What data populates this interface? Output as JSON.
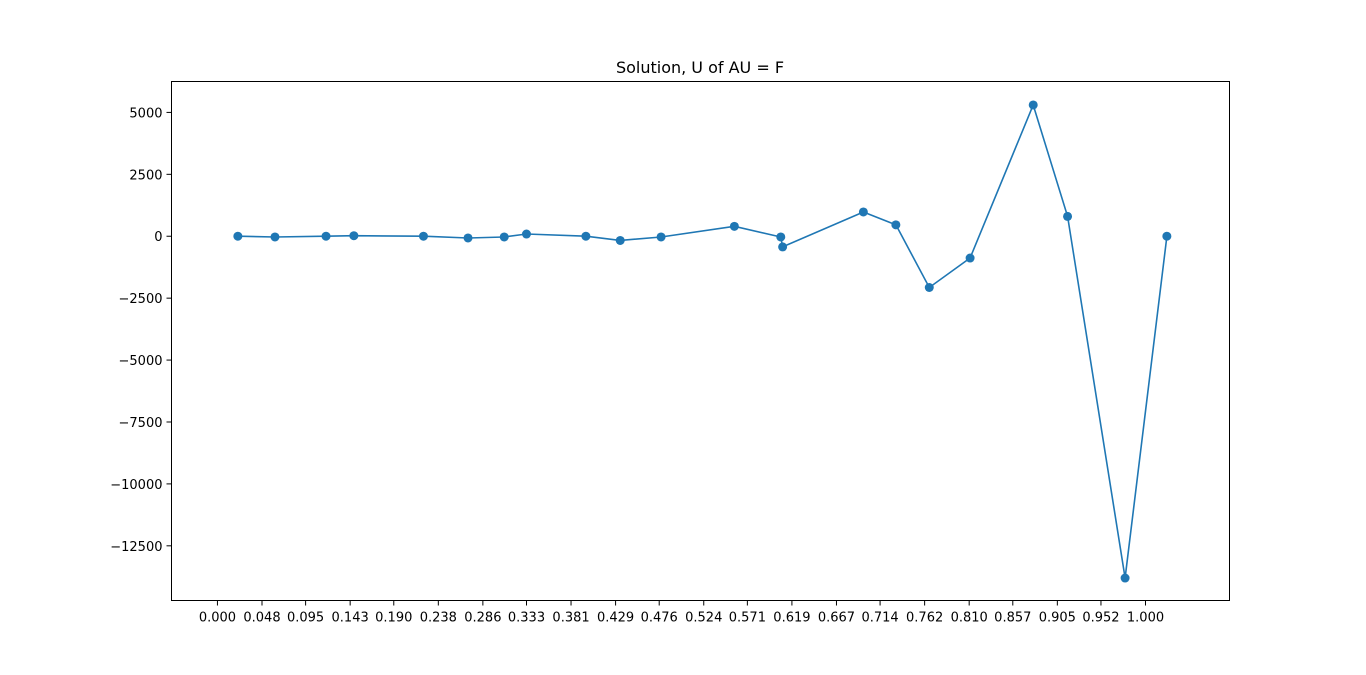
{
  "chart_data": {
    "type": "line",
    "title": "Solution, U of AU = F",
    "xlabel": "",
    "ylabel": "",
    "xlim": [
      -0.0495,
      1.0905
    ],
    "ylim": [
      -14708,
      6248
    ],
    "grid": false,
    "legend": "none",
    "marker": "circle",
    "color": "#1f77b4",
    "x_ticks": [
      0.0,
      0.048,
      0.095,
      0.143,
      0.19,
      0.238,
      0.286,
      0.333,
      0.381,
      0.429,
      0.476,
      0.524,
      0.571,
      0.619,
      0.667,
      0.714,
      0.762,
      0.81,
      0.857,
      0.905,
      0.952,
      1.0
    ],
    "x_tick_labels": [
      "0.000",
      "0.048",
      "0.095",
      "0.143",
      "0.190",
      "0.238",
      "0.286",
      "0.333",
      "0.381",
      "0.429",
      "0.476",
      "0.524",
      "0.571",
      "0.619",
      "0.667",
      "0.714",
      "0.762",
      "0.810",
      "0.857",
      "0.905",
      "0.952",
      "1.000"
    ],
    "y_ticks": [
      5000,
      2500,
      0,
      -2500,
      -5000,
      -7500,
      -10000,
      -12500
    ],
    "y_tick_labels": [
      "5000",
      "2500",
      "0",
      "−2500",
      "−5000",
      "−7500",
      "−10000",
      "−12500"
    ],
    "series": [
      {
        "x": [
          0.022,
          0.062,
          0.117,
          0.147,
          0.222,
          0.27,
          0.309,
          0.333,
          0.397,
          0.434,
          0.478,
          0.557,
          0.607,
          0.609,
          0.696,
          0.731,
          0.767,
          0.811,
          0.879,
          0.916,
          0.978,
          1.023
        ],
        "y": [
          0,
          -30,
          0,
          20,
          0,
          -70,
          -30,
          90,
          0,
          -170,
          -30,
          400,
          -30,
          -430,
          980,
          460,
          -2070,
          -880,
          5300,
          800,
          -13800,
          0
        ]
      }
    ]
  }
}
